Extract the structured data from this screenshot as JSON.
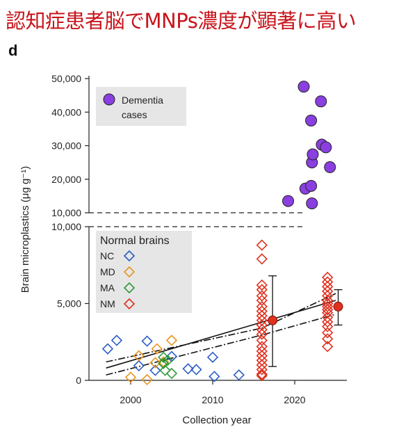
{
  "headline": "認知症患者脳でMNPs濃度が顕著に高い",
  "panel_letter": "d",
  "chart_data": {
    "type": "scatter",
    "xlabel": "Collection year",
    "ylabel": "Brain microplastics (μg g⁻¹)",
    "xlim": [
      1995,
      2027
    ],
    "x_ticks": [
      2000,
      2010,
      2020
    ],
    "upper_panel": {
      "ylim": [
        10000,
        50000
      ],
      "y_ticks": [
        "10,000",
        "20,000",
        "30,000",
        "40,000",
        "50,000"
      ],
      "y_tick_values": [
        10000,
        20000,
        30000,
        40000,
        50000
      ],
      "legend": {
        "label_line1": "Dementia",
        "label_line2": "cases",
        "color": "#8a3fe0"
      },
      "series": [
        {
          "name": "Dementia cases",
          "color": "#8a3fe0",
          "points": [
            {
              "x": 2019.2,
              "y": 13500
            },
            {
              "x": 2021.1,
              "y": 47600
            },
            {
              "x": 2021.3,
              "y": 17200
            },
            {
              "x": 2022.0,
              "y": 18000
            },
            {
              "x": 2022.1,
              "y": 12800
            },
            {
              "x": 2022.1,
              "y": 25000
            },
            {
              "x": 2022.2,
              "y": 27400
            },
            {
              "x": 2022.0,
              "y": 37500
            },
            {
              "x": 2023.2,
              "y": 43200
            },
            {
              "x": 2023.3,
              "y": 30300
            },
            {
              "x": 2023.8,
              "y": 29500
            },
            {
              "x": 2024.3,
              "y": 23600
            }
          ]
        }
      ]
    },
    "lower_panel": {
      "ylim": [
        0,
        10000
      ],
      "y_ticks": [
        "0",
        "5,000",
        "10,000"
      ],
      "y_tick_values": [
        0,
        5000,
        10000
      ],
      "legend_title": "Normal brains",
      "series": [
        {
          "name": "NC",
          "color": "#2b5cc4",
          "points": [
            {
              "x": 1997.2,
              "y": 2050
            },
            {
              "x": 1998.3,
              "y": 2600
            },
            {
              "x": 2001.0,
              "y": 950
            },
            {
              "x": 2002.0,
              "y": 2550
            },
            {
              "x": 2003.0,
              "y": 650
            },
            {
              "x": 2005.0,
              "y": 1550
            },
            {
              "x": 2007.0,
              "y": 750
            },
            {
              "x": 2008.0,
              "y": 700
            },
            {
              "x": 2010.0,
              "y": 1500
            },
            {
              "x": 2010.2,
              "y": 250
            },
            {
              "x": 2013.2,
              "y": 350
            }
          ]
        },
        {
          "name": "MD",
          "color": "#e8951e",
          "points": [
            {
              "x": 2000.0,
              "y": 200
            },
            {
              "x": 2001.0,
              "y": 1600
            },
            {
              "x": 2002.0,
              "y": 50
            },
            {
              "x": 2003.0,
              "y": 1150
            },
            {
              "x": 2003.2,
              "y": 2050
            },
            {
              "x": 2004.0,
              "y": 1200
            },
            {
              "x": 2005.0,
              "y": 2600
            }
          ]
        },
        {
          "name": "MA",
          "color": "#2e9a3a",
          "points": [
            {
              "x": 2004.0,
              "y": 1500
            },
            {
              "x": 2004.0,
              "y": 1100
            },
            {
              "x": 2004.2,
              "y": 650
            },
            {
              "x": 2004.5,
              "y": 1300
            },
            {
              "x": 2005.0,
              "y": 450
            }
          ]
        },
        {
          "name": "NM",
          "color": "#e0301e",
          "points": [
            {
              "x": 2016.0,
              "y": 8800
            },
            {
              "x": 2016.0,
              "y": 7900
            },
            {
              "x": 2016.0,
              "y": 6200
            },
            {
              "x": 2016.0,
              "y": 5900
            },
            {
              "x": 2016.0,
              "y": 5500
            },
            {
              "x": 2016.0,
              "y": 5200
            },
            {
              "x": 2016.0,
              "y": 4800
            },
            {
              "x": 2016.0,
              "y": 4500
            },
            {
              "x": 2016.0,
              "y": 4200
            },
            {
              "x": 2016.0,
              "y": 3900
            },
            {
              "x": 2016.0,
              "y": 3600
            },
            {
              "x": 2016.0,
              "y": 3300
            },
            {
              "x": 2016.0,
              "y": 3000
            },
            {
              "x": 2016.0,
              "y": 2600
            },
            {
              "x": 2016.0,
              "y": 2200
            },
            {
              "x": 2016.0,
              "y": 1900
            },
            {
              "x": 2016.0,
              "y": 1600
            },
            {
              "x": 2016.0,
              "y": 1300
            },
            {
              "x": 2016.0,
              "y": 1000
            },
            {
              "x": 2016.0,
              "y": 700
            },
            {
              "x": 2016.0,
              "y": 400
            },
            {
              "x": 2016.0,
              "y": 300
            },
            {
              "x": 2024.0,
              "y": 6700
            },
            {
              "x": 2024.0,
              "y": 6400
            },
            {
              "x": 2024.0,
              "y": 6100
            },
            {
              "x": 2024.0,
              "y": 5800
            },
            {
              "x": 2024.0,
              "y": 5500
            },
            {
              "x": 2024.0,
              "y": 5200
            },
            {
              "x": 2024.0,
              "y": 5000
            },
            {
              "x": 2024.0,
              "y": 4800
            },
            {
              "x": 2024.0,
              "y": 4600
            },
            {
              "x": 2024.0,
              "y": 4400
            },
            {
              "x": 2024.0,
              "y": 4100
            },
            {
              "x": 2024.0,
              "y": 3800
            },
            {
              "x": 2024.0,
              "y": 3500
            },
            {
              "x": 2024.0,
              "y": 3100
            },
            {
              "x": 2024.0,
              "y": 2700
            },
            {
              "x": 2024.0,
              "y": 2200
            }
          ]
        }
      ],
      "summary_points": [
        {
          "x": 2017.3,
          "y": 3900,
          "err_low": 900,
          "err_high": 6800,
          "color": "#e0301e"
        },
        {
          "x": 2025.3,
          "y": 4800,
          "err_low": 3600,
          "err_high": 5900,
          "color": "#e0301e"
        }
      ],
      "trend": {
        "fit": [
          {
            "x": 1997,
            "y": 800
          },
          {
            "x": 2025,
            "y": 5200
          }
        ],
        "ci_upper": [
          {
            "x": 1997,
            "y": 1200
          },
          {
            "x": 2016,
            "y": 3400
          },
          {
            "x": 2025,
            "y": 5650
          }
        ],
        "ci_lower": [
          {
            "x": 1997,
            "y": 350
          },
          {
            "x": 2016,
            "y": 2950
          },
          {
            "x": 2025,
            "y": 4300
          }
        ]
      }
    },
    "grid": false
  }
}
